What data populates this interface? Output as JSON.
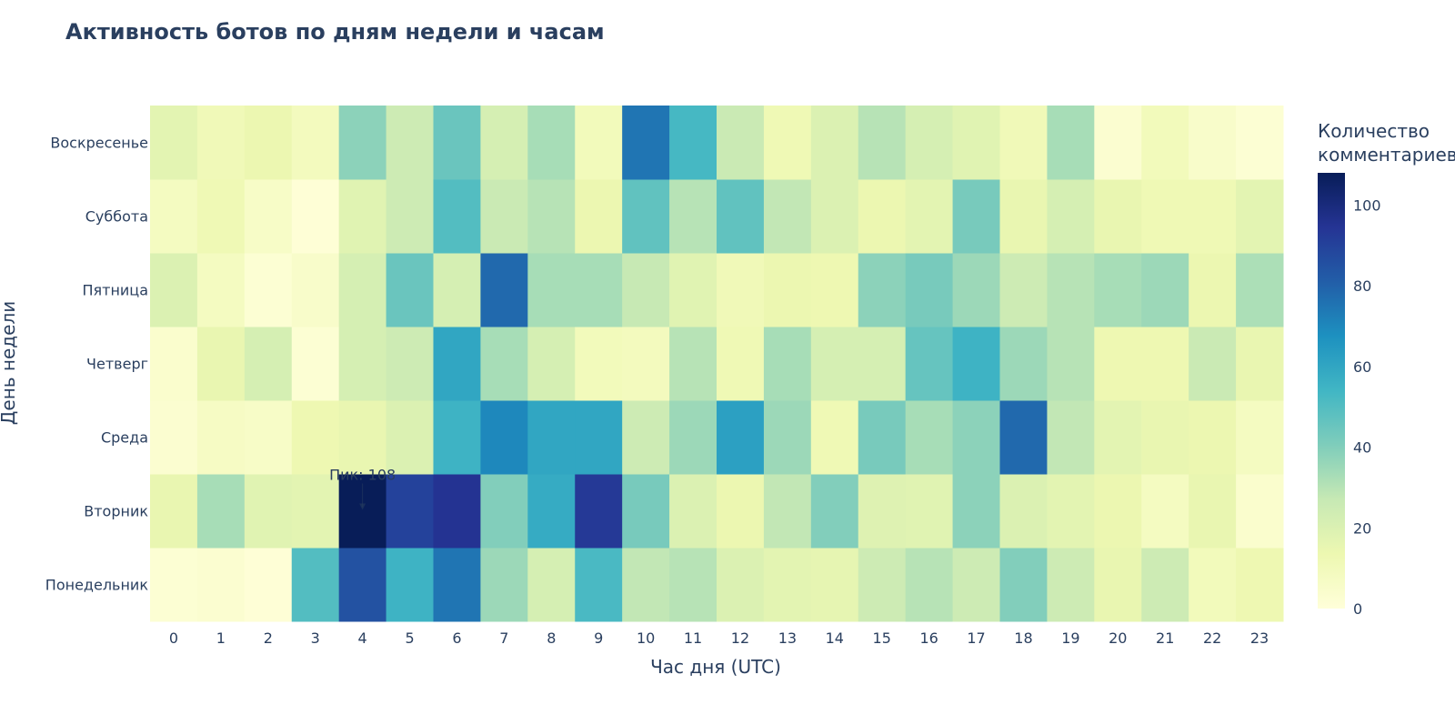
{
  "chart_data": {
    "type": "heatmap",
    "title": "Активность ботов по дням недели и часам",
    "xlabel": "Час дня (UTC)",
    "ylabel": "День недели",
    "x": [
      "0",
      "1",
      "2",
      "3",
      "4",
      "5",
      "6",
      "7",
      "8",
      "9",
      "10",
      "11",
      "12",
      "13",
      "14",
      "15",
      "16",
      "17",
      "18",
      "19",
      "20",
      "21",
      "22",
      "23"
    ],
    "y": [
      "Понедельник",
      "Вторник",
      "Среда",
      "Четверг",
      "Пятница",
      "Суббота",
      "Воскресенье"
    ],
    "z": [
      [
        2,
        3,
        1,
        50,
        85,
        55,
        75,
        35,
        22,
        52,
        28,
        30,
        20,
        17,
        16,
        25,
        30,
        25,
        40,
        25,
        15,
        25,
        10,
        13
      ],
      [
        15,
        33,
        18,
        17,
        108,
        90,
        95,
        40,
        58,
        93,
        42,
        20,
        14,
        28,
        40,
        19,
        18,
        38,
        20,
        17,
        14,
        8,
        15,
        4
      ],
      [
        3,
        7,
        6,
        13,
        15,
        20,
        55,
        70,
        60,
        60,
        25,
        35,
        62,
        35,
        12,
        42,
        33,
        38,
        78,
        28,
        17,
        15,
        14,
        8
      ],
      [
        4,
        15,
        22,
        2,
        22,
        25,
        60,
        33,
        22,
        10,
        9,
        30,
        12,
        33,
        22,
        22,
        46,
        55,
        35,
        30,
        13,
        13,
        26,
        15
      ],
      [
        20,
        8,
        2,
        5,
        22,
        45,
        22,
        78,
        33,
        33,
        27,
        18,
        11,
        14,
        13,
        38,
        42,
        35,
        25,
        30,
        33,
        35,
        14,
        32
      ],
      [
        8,
        12,
        6,
        1,
        18,
        25,
        50,
        26,
        30,
        14,
        47,
        30,
        47,
        28,
        20,
        14,
        17,
        42,
        15,
        22,
        15,
        12,
        12,
        17
      ],
      [
        17,
        11,
        14,
        9,
        38,
        25,
        45,
        22,
        33,
        10,
        75,
        53,
        26,
        12,
        20,
        30,
        22,
        18,
        11,
        33,
        3,
        10,
        5,
        2
      ]
    ],
    "zmin": 0,
    "zmax": 108,
    "colorscale": "YlGnBu",
    "colorbar": {
      "title_lines": [
        "Количество",
        "комментариев"
      ],
      "ticks": [
        0,
        20,
        40,
        60,
        80,
        100
      ]
    },
    "annotation": {
      "text": "Пик: 108",
      "x": 4,
      "y": 1
    },
    "colors": {
      "text": "#2a3f5f",
      "scale": [
        "#ffffd9",
        "#edf8b1",
        "#c7e9b4",
        "#7fcdbb",
        "#41b6c4",
        "#1d91c0",
        "#225ea8",
        "#253494",
        "#081d58"
      ]
    }
  }
}
